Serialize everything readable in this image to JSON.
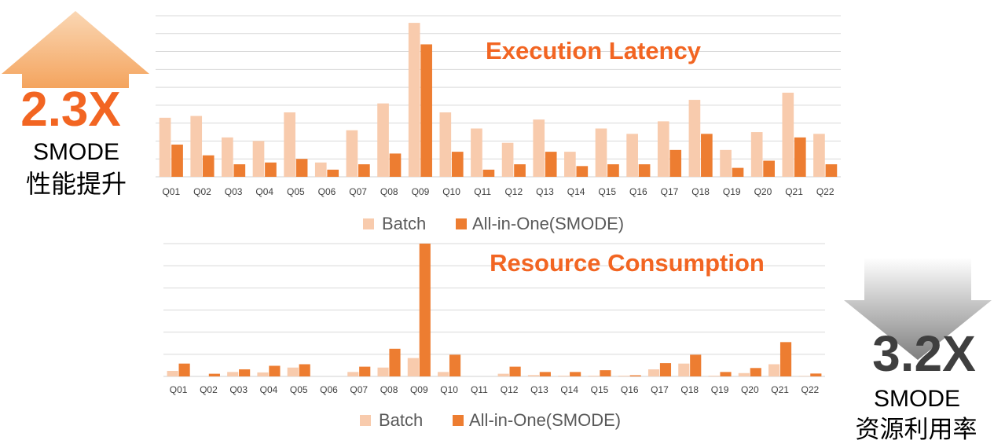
{
  "left_badge": {
    "value": "2.3X",
    "line1": "SMODE",
    "line2": "性能提升"
  },
  "right_badge": {
    "value": "3.2X",
    "line1": "SMODE",
    "line2": "资源利用率"
  },
  "colors": {
    "batch": "#F8CBAD",
    "smode": "#ED7D31",
    "title": "#F26522",
    "grid": "#D9D9D9",
    "up_arrow_top": "#FAD7B4",
    "up_arrow_bottom": "#F4A45E",
    "down_arrow_top": "#FFFFFF",
    "down_arrow_bottom": "#7F7F7F",
    "badge_up": "#F26522",
    "badge_down": "#3F3F3F"
  },
  "chart_data": [
    {
      "type": "bar",
      "title": "Execution Latency",
      "categories": [
        "Q01",
        "Q02",
        "Q03",
        "Q04",
        "Q05",
        "Q06",
        "Q07",
        "Q08",
        "Q09",
        "Q10",
        "Q11",
        "Q12",
        "Q13",
        "Q14",
        "Q15",
        "Q16",
        "Q17",
        "Q18",
        "Q19",
        "Q20",
        "Q21",
        "Q22"
      ],
      "series": [
        {
          "name": "Batch",
          "values": [
            33,
            34,
            22,
            20,
            36,
            8,
            26,
            41,
            86,
            36,
            27,
            19,
            32,
            14,
            27,
            24,
            31,
            43,
            15,
            25,
            47,
            24
          ]
        },
        {
          "name": "All-in-One(SMODE)",
          "values": [
            18,
            12,
            7,
            8,
            10,
            4,
            7,
            13,
            74,
            14,
            4,
            7,
            14,
            6,
            7,
            7,
            15,
            24,
            5,
            9,
            22,
            7
          ]
        }
      ],
      "ylim": [
        0,
        90
      ],
      "grid": true,
      "legend": "bottom"
    },
    {
      "type": "bar",
      "title": "Resource Consumption",
      "categories": [
        "Q01",
        "Q02",
        "Q03",
        "Q04",
        "Q05",
        "Q06",
        "Q07",
        "Q08",
        "Q09",
        "Q10",
        "Q11",
        "Q12",
        "Q13",
        "Q14",
        "Q15",
        "Q16",
        "Q17",
        "Q18",
        "Q19",
        "Q20",
        "Q21",
        "Q22"
      ],
      "series": [
        {
          "name": "Batch",
          "values": [
            2.5,
            0,
            2,
            1.8,
            4,
            0,
            2,
            4,
            8.3,
            2,
            0,
            1.2,
            0.6,
            0.3,
            0.3,
            0.3,
            3.2,
            5.8,
            0.3,
            1.5,
            5.5,
            0.2
          ]
        },
        {
          "name": "All-in-One(SMODE)",
          "values": [
            5.8,
            1.2,
            3.2,
            4.8,
            5.5,
            0,
            4.4,
            12.5,
            60,
            9.8,
            0,
            4.4,
            2,
            2,
            2.8,
            0.5,
            6,
            9.8,
            2,
            3.8,
            15.5,
            1.3
          ]
        }
      ],
      "ylim": [
        0,
        60
      ],
      "grid": true,
      "legend": "bottom"
    }
  ]
}
